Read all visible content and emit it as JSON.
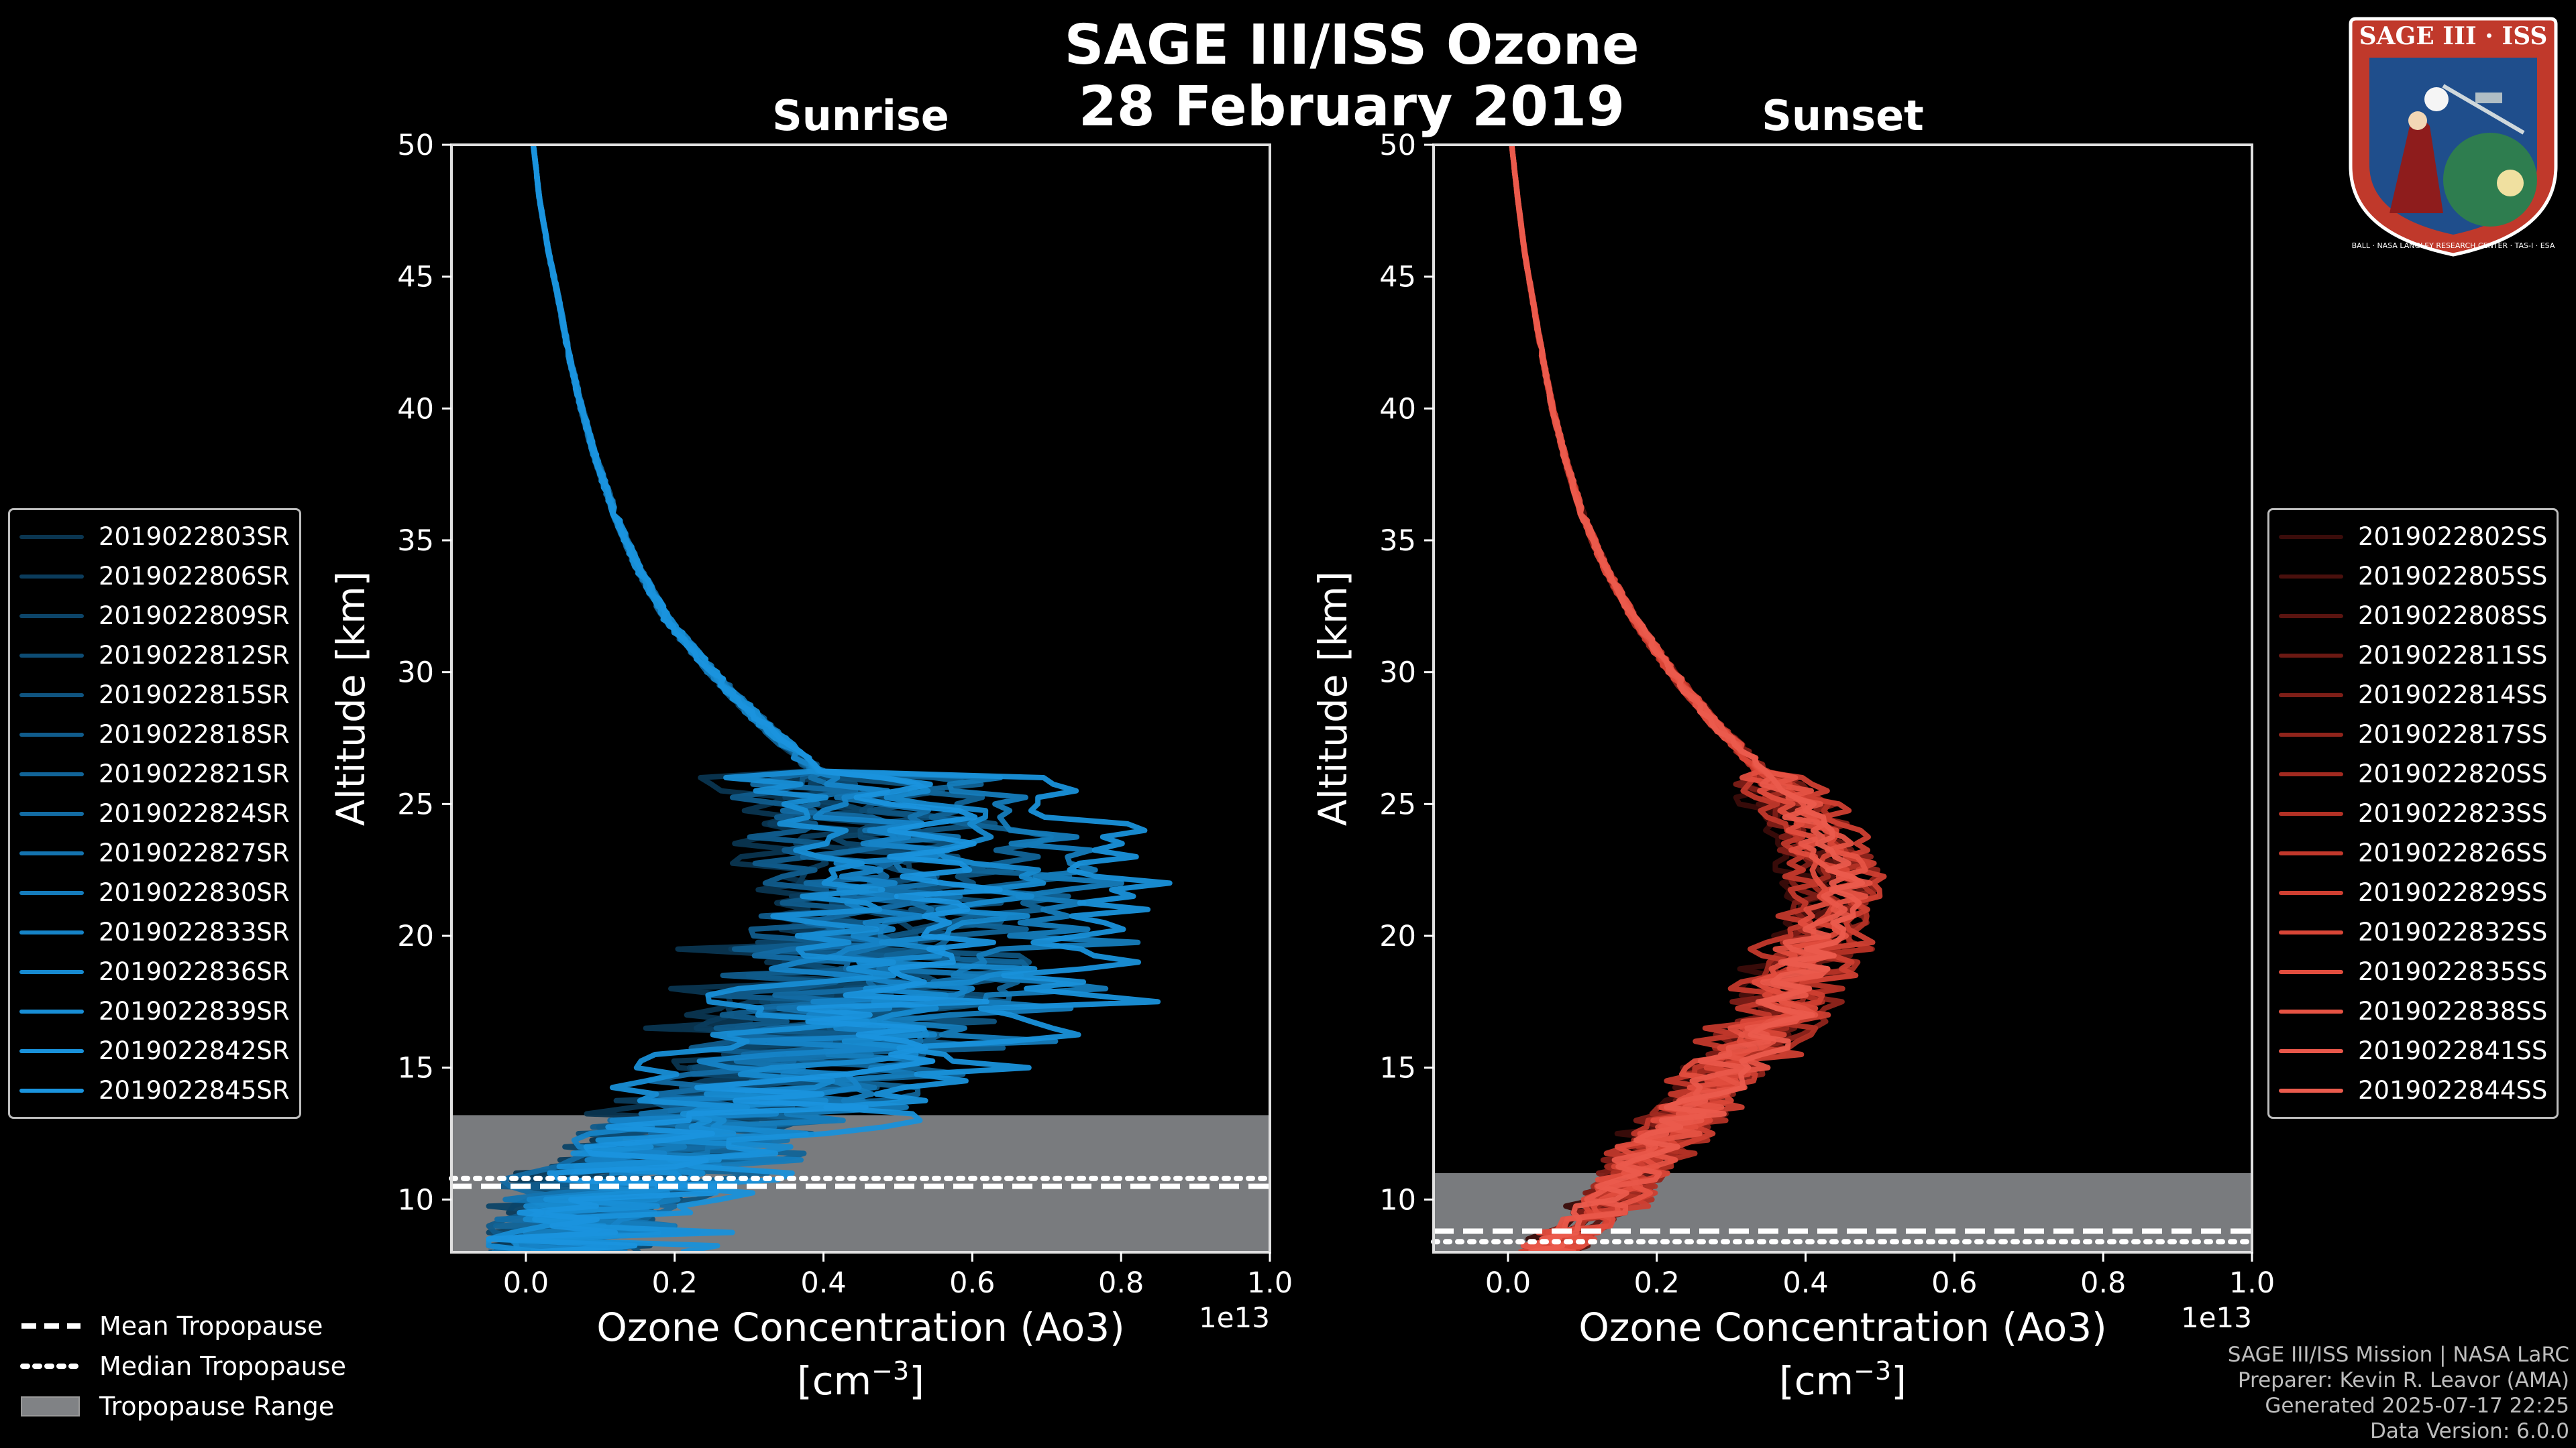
{
  "figure": {
    "title_line1": "SAGE III/ISS Ozone",
    "title_line2": "28 February 2019",
    "footer": [
      "SAGE III/ISS Mission | NASA LaRC",
      "Preparer: Kevin R. Leavor (AMA)",
      "Generated 2025-07-17 22:25",
      "Data Version: 6.0.0"
    ],
    "logo": {
      "title": "SAGE III · ISS",
      "ring_text": "BALL · NASA LANGLEY RESEARCH CENTER · TAS-I · ESA",
      "colors": {
        "ring": "#c0392b",
        "inner": "#1f4e8c"
      }
    }
  },
  "key": {
    "mean_label": "Mean Tropopause",
    "median_label": "Median Tropopause",
    "range_label": "Tropopause Range",
    "range_color": "#808285"
  },
  "chart_data": [
    {
      "type": "line",
      "title": "Sunrise",
      "xlabel": "Ozone Concentration (Ao3)",
      "xlabel_units": "[cm",
      "xlabel_exp": "−3",
      "xlabel_close": "]",
      "ylabel": "Altitude [km]",
      "xlim": [
        -0.1,
        1.0
      ],
      "ylim": [
        8,
        50
      ],
      "x_scale_note": "1e13",
      "xticks": [
        0.0,
        0.2,
        0.4,
        0.6,
        0.8,
        1.0
      ],
      "xtick_labels": [
        "0.0",
        "0.2",
        "0.4",
        "0.6",
        "0.8",
        "1.0"
      ],
      "yticks": [
        10,
        15,
        20,
        25,
        30,
        35,
        40,
        45,
        50
      ],
      "ytick_labels": [
        "10",
        "15",
        "20",
        "25",
        "30",
        "35",
        "40",
        "45",
        "50"
      ],
      "tropopause": {
        "mean": 10.5,
        "median": 10.8,
        "range": [
          8,
          13.2
        ]
      },
      "base_profile": {
        "altitude": [
          8,
          10,
          12,
          14,
          16,
          18,
          20,
          22,
          24,
          26,
          28,
          30,
          32,
          34,
          36,
          38,
          40,
          42,
          44,
          46,
          48,
          50
        ],
        "ozone": [
          0.08,
          0.12,
          0.2,
          0.3,
          0.4,
          0.46,
          0.48,
          0.5,
          0.48,
          0.4,
          0.32,
          0.25,
          0.19,
          0.15,
          0.12,
          0.095,
          0.075,
          0.058,
          0.045,
          0.03,
          0.018,
          0.01
        ]
      },
      "series_color": "#1a8fd4",
      "series": [
        {
          "name": "2019022803SR",
          "scale": 0.72,
          "color": "#0a3550"
        },
        {
          "name": "2019022806SR",
          "scale": 0.85,
          "color": "#0b3c5c"
        },
        {
          "name": "2019022809SR",
          "scale": 0.95,
          "color": "#0c4468"
        },
        {
          "name": "2019022812SR",
          "scale": 1.05,
          "color": "#0d4c74"
        },
        {
          "name": "2019022815SR",
          "scale": 1.18,
          "color": "#0f5480"
        },
        {
          "name": "2019022818SR",
          "scale": 0.78,
          "color": "#105c8c"
        },
        {
          "name": "2019022821SR",
          "scale": 1.32,
          "color": "#116498"
        },
        {
          "name": "2019022824SR",
          "scale": 0.9,
          "color": "#136ca4"
        },
        {
          "name": "2019022827SR",
          "scale": 1.1,
          "color": "#1474b0"
        },
        {
          "name": "2019022830SR",
          "scale": 1.45,
          "color": "#157cbc"
        },
        {
          "name": "2019022833SR",
          "scale": 1.0,
          "color": "#1684c8"
        },
        {
          "name": "2019022836SR",
          "scale": 1.25,
          "color": "#178ad0"
        },
        {
          "name": "2019022839SR",
          "scale": 0.82,
          "color": "#188ed6"
        },
        {
          "name": "2019022842SR",
          "scale": 1.6,
          "color": "#1991da"
        },
        {
          "name": "2019022845SR",
          "scale": 1.15,
          "color": "#1a94de"
        }
      ]
    },
    {
      "type": "line",
      "title": "Sunset",
      "xlabel": "Ozone Concentration (Ao3)",
      "xlabel_units": "[cm",
      "xlabel_exp": "−3",
      "xlabel_close": "]",
      "ylabel": "Altitude [km]",
      "xlim": [
        -0.1,
        1.0
      ],
      "ylim": [
        8,
        50
      ],
      "x_scale_note": "1e13",
      "xticks": [
        0.0,
        0.2,
        0.4,
        0.6,
        0.8,
        1.0
      ],
      "xtick_labels": [
        "0.0",
        "0.2",
        "0.4",
        "0.6",
        "0.8",
        "1.0"
      ],
      "yticks": [
        10,
        15,
        20,
        25,
        30,
        35,
        40,
        45,
        50
      ],
      "ytick_labels": [
        "10",
        "15",
        "20",
        "25",
        "30",
        "35",
        "40",
        "45",
        "50"
      ],
      "tropopause": {
        "mean": 8.8,
        "median": 8.4,
        "range": [
          8,
          11.0
        ]
      },
      "base_profile": {
        "altitude": [
          8,
          9,
          10,
          12,
          14,
          16,
          18,
          20,
          22,
          24,
          26,
          28,
          30,
          32,
          34,
          36,
          38,
          40,
          42,
          44,
          46,
          48,
          50
        ],
        "ozone": [
          0.05,
          0.1,
          0.14,
          0.2,
          0.26,
          0.33,
          0.38,
          0.42,
          0.44,
          0.41,
          0.35,
          0.28,
          0.22,
          0.17,
          0.13,
          0.1,
          0.078,
          0.06,
          0.046,
          0.034,
          0.022,
          0.013,
          0.005
        ]
      },
      "series_color": "#e8574a",
      "series": [
        {
          "name": "2019022802SS",
          "scale": 0.88,
          "color": "#3a0c0a"
        },
        {
          "name": "2019022805SS",
          "scale": 0.95,
          "color": "#4a100d"
        },
        {
          "name": "2019022808SS",
          "scale": 1.0,
          "color": "#5a1410"
        },
        {
          "name": "2019022811SS",
          "scale": 1.05,
          "color": "#6c1913"
        },
        {
          "name": "2019022814SS",
          "scale": 0.92,
          "color": "#7e1e17"
        },
        {
          "name": "2019022817SS",
          "scale": 1.1,
          "color": "#90241b"
        },
        {
          "name": "2019022820SS",
          "scale": 0.98,
          "color": "#a22a20"
        },
        {
          "name": "2019022823SS",
          "scale": 1.08,
          "color": "#b33125"
        },
        {
          "name": "2019022826SS",
          "scale": 0.9,
          "color": "#c2382b"
        },
        {
          "name": "2019022829SS",
          "scale": 1.12,
          "color": "#cf3f31"
        },
        {
          "name": "2019022832SS",
          "scale": 1.02,
          "color": "#d94637"
        },
        {
          "name": "2019022835SS",
          "scale": 0.96,
          "color": "#e14d3e"
        },
        {
          "name": "2019022838SS",
          "scale": 1.06,
          "color": "#e65344"
        },
        {
          "name": "2019022841SS",
          "scale": 1.0,
          "color": "#e9574a"
        },
        {
          "name": "2019022844SS",
          "scale": 1.04,
          "color": "#eb5b4d"
        }
      ]
    }
  ]
}
